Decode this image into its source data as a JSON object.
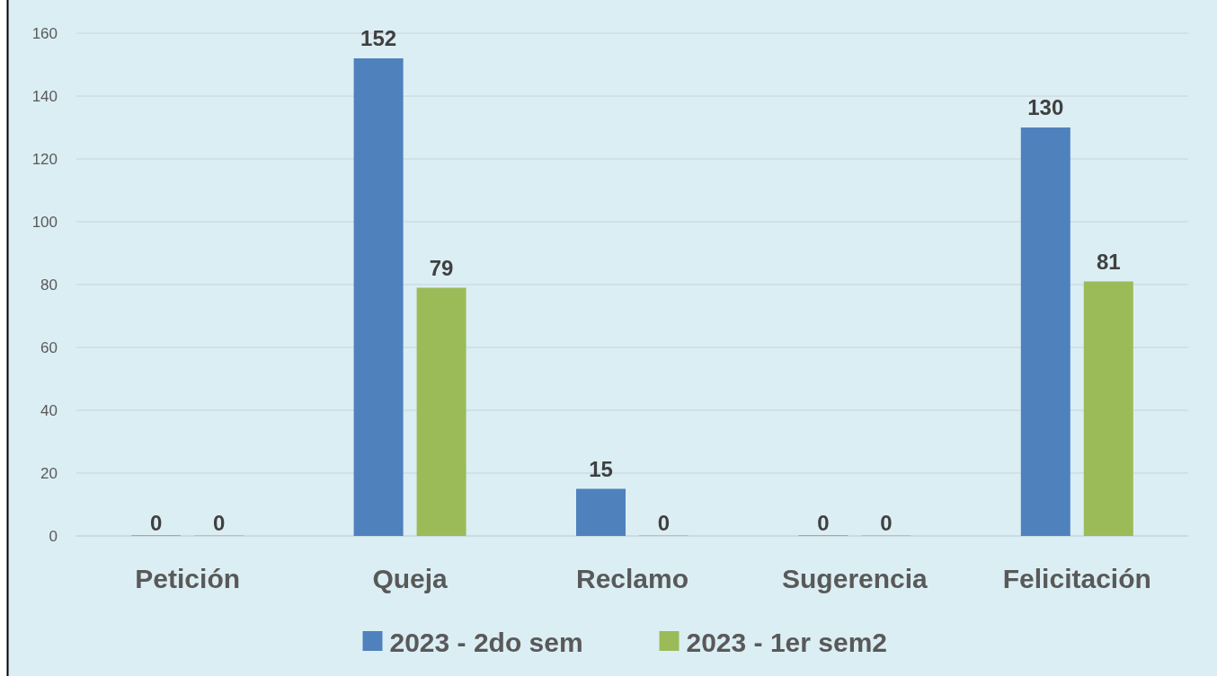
{
  "chart_data": {
    "type": "bar",
    "categories": [
      "Petición",
      "Queja",
      "Reclamo",
      "Sugerencia",
      "Felicitación"
    ],
    "series": [
      {
        "name": "2023 - 2do sem",
        "color": "#4f81bd",
        "values": [
          0,
          152,
          15,
          0,
          130
        ]
      },
      {
        "name": "2023 - 1er sem2",
        "color": "#9bbb59",
        "values": [
          0,
          79,
          0,
          0,
          81
        ]
      }
    ],
    "ylim": [
      0,
      160
    ],
    "yticks": [
      0,
      20,
      40,
      60,
      80,
      100,
      120,
      140,
      160
    ],
    "grid": "y",
    "legend": "bottom",
    "data_labels": true
  }
}
